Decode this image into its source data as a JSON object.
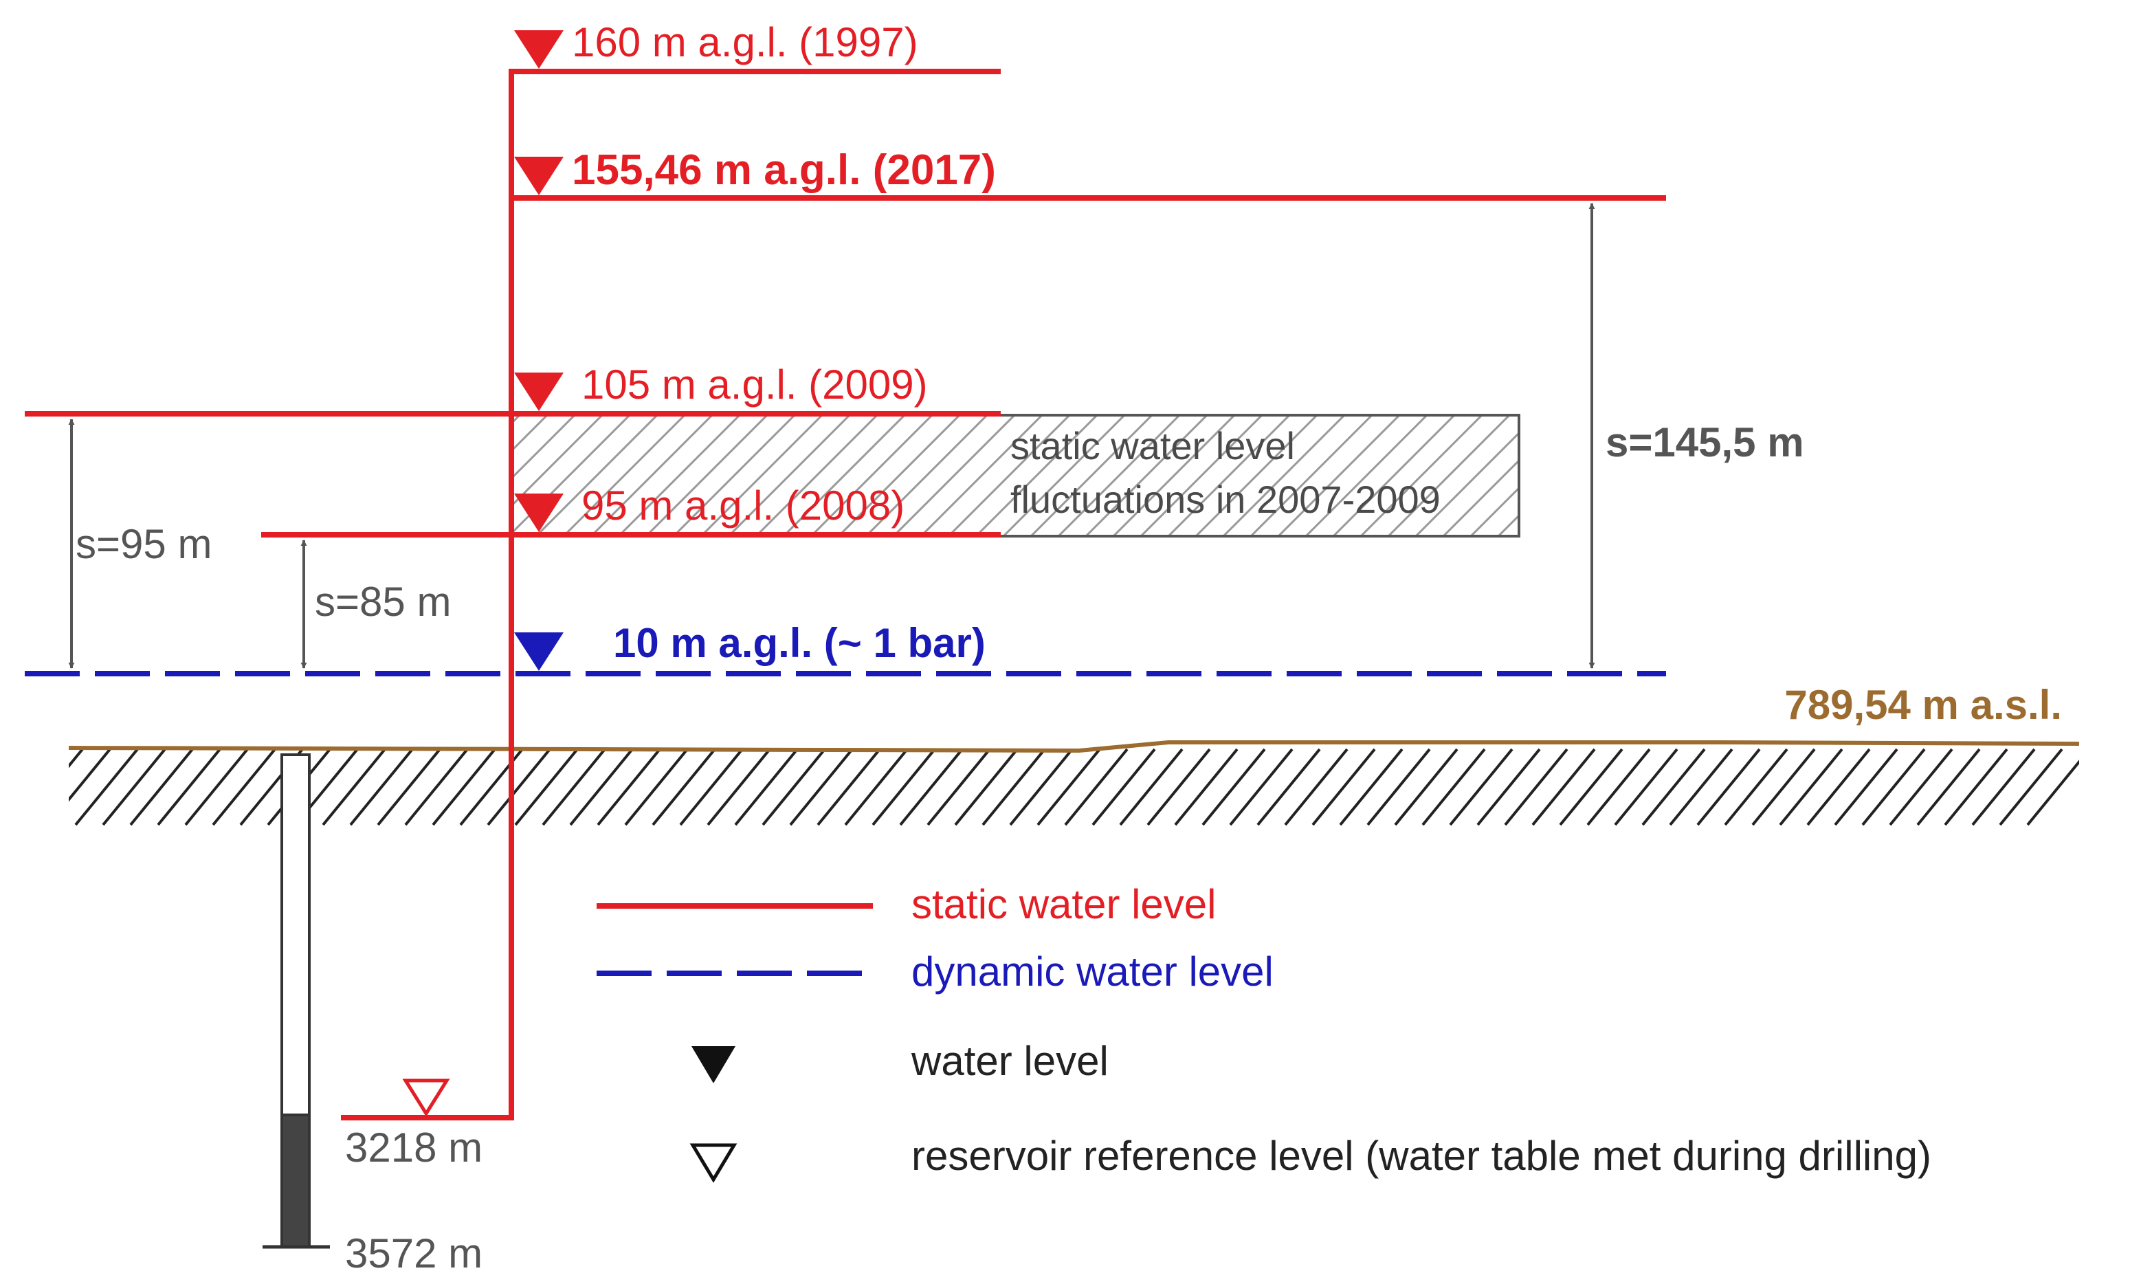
{
  "levels": {
    "l1997": "160 m a.g.l.  (1997)",
    "l2017": "155,46 m a.g.l.  (2017)",
    "l2009": "105 m a.g.l. (2009)",
    "l2008": "95 m a.g.l. (2008)",
    "dynamic": "10 m a.g.l. (~ 1 bar)"
  },
  "fluctuation_box": {
    "line1": "static water level",
    "line2": "fluctuations in 2007-2009"
  },
  "drawdowns": {
    "s145": "s=145,5 m",
    "s95": "s=95 m",
    "s85": "s=85 m"
  },
  "ground": {
    "elevation": "789,54 m a.s.l."
  },
  "well": {
    "reservoir_depth": "3218 m",
    "total_depth": "3572 m"
  },
  "legend": {
    "static": "static water level",
    "dynamic": "dynamic water level",
    "water_level": "water level",
    "reservoir": "reservoir reference level (water table met during drilling)"
  },
  "colors": {
    "static": "#e31e24",
    "dynamic": "#1a1ab8",
    "ground": "#9c6b30",
    "annotation": "#555555"
  }
}
